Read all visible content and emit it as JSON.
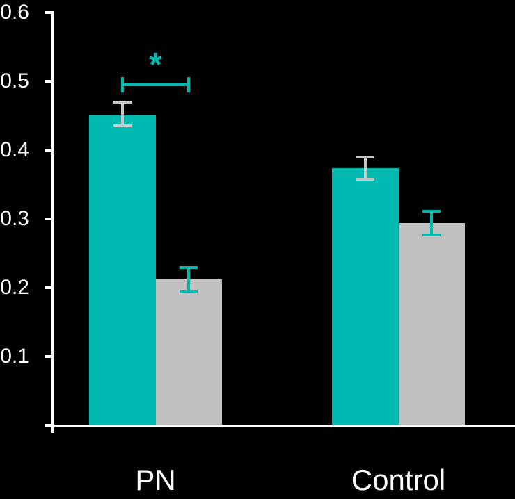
{
  "chart_data": {
    "type": "bar",
    "title": "",
    "xlabel": "",
    "ylabel": "",
    "background": "#000000",
    "axis_color": "#ffffff",
    "grid": false,
    "legend": "none",
    "categories": [
      "PN",
      "Control"
    ],
    "series": [
      {
        "name": "teal-series",
        "color": "#00b9b0",
        "error_color": "#c6c6c6",
        "values": [
          0.452,
          0.374
        ],
        "errors": [
          0.019,
          0.018
        ]
      },
      {
        "name": "gray-series",
        "color": "#c1c1c1",
        "error_color": "#00b9b0",
        "values": [
          0.212,
          0.294
        ],
        "errors": [
          0.019,
          0.019
        ]
      }
    ],
    "ylim": [
      0,
      0.6
    ],
    "yticks": [
      "0.1",
      "0.2",
      "0.3",
      "0.4",
      "0.5",
      "0.6"
    ],
    "significance": {
      "label": "*",
      "group": "PN",
      "connects": [
        "teal-series",
        "gray-series"
      ],
      "bar_y": 0.495,
      "color": "#00b9b0"
    }
  }
}
